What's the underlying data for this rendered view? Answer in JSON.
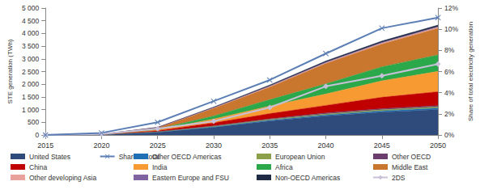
{
  "chart_data": {
    "type": "area",
    "stacked": true,
    "grid": false,
    "legend": "bottom",
    "y_label": "STE generation (TWh)",
    "y2_label": "Share of total electricity generation",
    "categories": [
      "2015",
      "2020",
      "2025",
      "2030",
      "2035",
      "2040",
      "2045",
      "2050"
    ],
    "ylim": [
      0,
      5000
    ],
    "yticks": [
      0,
      500,
      {
        "value": 1000,
        "label": "1 000"
      },
      {
        "value": 1500,
        "label": "1 500"
      },
      {
        "value": 2000,
        "label": "2 000"
      },
      {
        "value": 2500,
        "label": "2 500"
      },
      {
        "value": 3000,
        "label": "3 000"
      },
      {
        "value": 3500,
        "label": "3 500"
      },
      {
        "value": 4000,
        "label": "4 000"
      },
      {
        "value": 4500,
        "label": "4 500"
      },
      {
        "value": 5000,
        "label": "5 000"
      }
    ],
    "y2lim": [
      0,
      12
    ],
    "y2ticks": [
      {
        "value": 0,
        "label": "0%"
      },
      {
        "value": 2,
        "label": "2%"
      },
      {
        "value": 4,
        "label": "4%"
      },
      {
        "value": 6,
        "label": "6%"
      },
      {
        "value": 8,
        "label": "8%"
      },
      {
        "value": 10,
        "label": "10%"
      },
      {
        "value": 12,
        "label": "12%"
      }
    ],
    "series": [
      {
        "name": "United States",
        "color": "#2F4B7C",
        "values": [
          0,
          10,
          100,
          300,
          550,
          750,
          900,
          1000
        ]
      },
      {
        "name": "Other OECD Americas",
        "color": "#1F6FB4",
        "values": [
          0,
          2,
          10,
          20,
          30,
          40,
          50,
          60
        ]
      },
      {
        "name": "European Union",
        "color": "#8CA04A",
        "values": [
          0,
          5,
          15,
          25,
          35,
          40,
          45,
          50
        ]
      },
      {
        "name": "Other OECD",
        "color": "#6B3E6E",
        "values": [
          0,
          1,
          5,
          15,
          25,
          35,
          40,
          45
        ]
      },
      {
        "name": "China",
        "color": "#C00000",
        "values": [
          0,
          5,
          40,
          120,
          200,
          300,
          450,
          550
        ]
      },
      {
        "name": "India",
        "color": "#F79A31",
        "values": [
          0,
          2,
          30,
          150,
          300,
          450,
          650,
          800
        ]
      },
      {
        "name": "Africa",
        "color": "#2BA84A",
        "values": [
          0,
          2,
          30,
          120,
          250,
          400,
          550,
          650
        ]
      },
      {
        "name": "Middle East",
        "color": "#C9772E",
        "values": [
          0,
          3,
          60,
          300,
          500,
          800,
          900,
          1050
        ]
      },
      {
        "name": "Other developing Asia",
        "color": "#E8A29B",
        "values": [
          0,
          0,
          5,
          15,
          25,
          30,
          35,
          40
        ]
      },
      {
        "name": "Eastern Europe and FSU",
        "color": "#8064A2",
        "values": [
          0,
          0,
          3,
          10,
          15,
          20,
          25,
          25
        ]
      },
      {
        "name": "Non-OECD Americas",
        "color": "#1F2A44",
        "values": [
          0,
          0,
          5,
          25,
          40,
          50,
          55,
          60
        ]
      },
      {
        "name": "2DS",
        "type": "line",
        "axis": "y2",
        "color": "#C8C0D8",
        "marker": "diamond",
        "values": [
          0,
          0.1,
          0.6,
          1.3,
          2.6,
          4.6,
          5.6,
          6.7
        ]
      },
      {
        "name": "Share of total",
        "type": "line",
        "axis": "y2",
        "color": "#5B7FB5",
        "marker": "cross",
        "values": [
          0,
          0.2,
          1.2,
          3.2,
          5.2,
          7.7,
          10.1,
          11.1
        ]
      }
    ]
  }
}
